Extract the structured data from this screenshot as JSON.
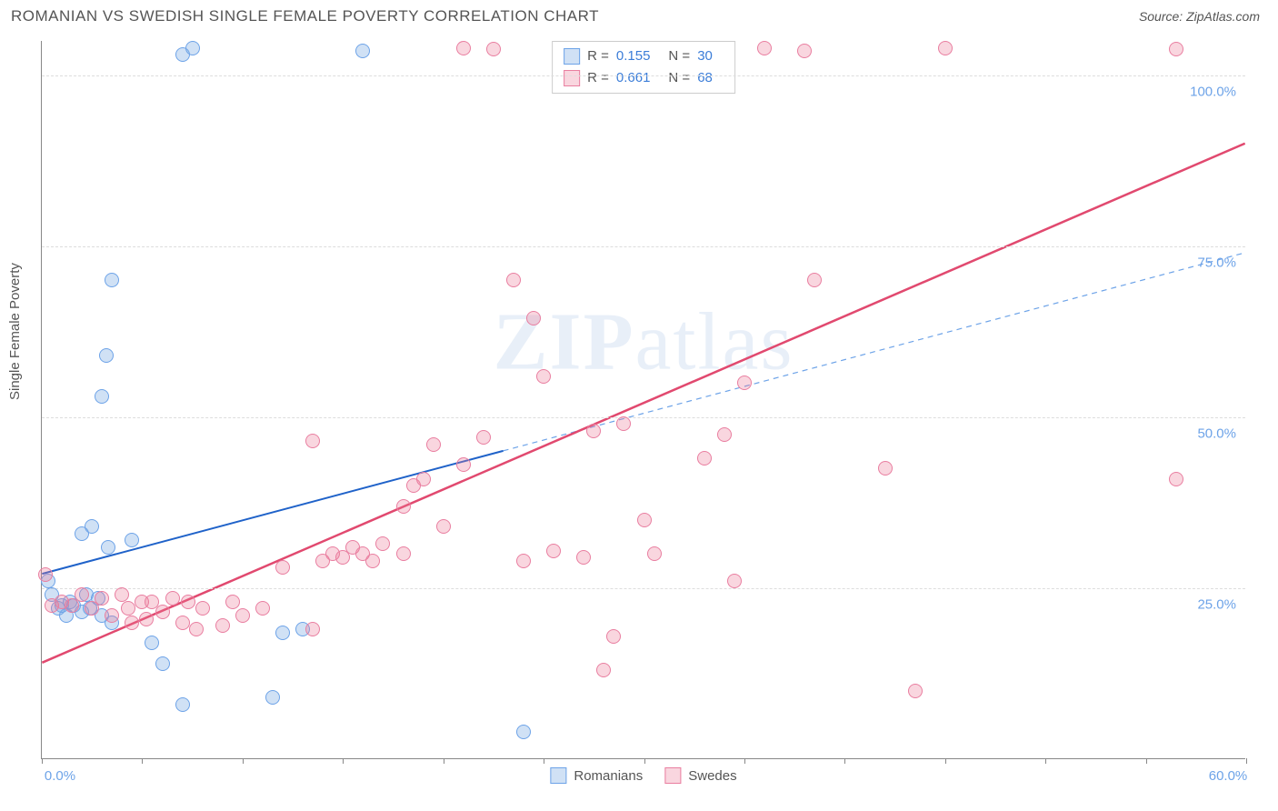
{
  "header": {
    "title": "ROMANIAN VS SWEDISH SINGLE FEMALE POVERTY CORRELATION CHART",
    "source": "Source: ZipAtlas.com"
  },
  "watermark": "ZIPatlas",
  "ylabel": "Single Female Poverty",
  "chart": {
    "type": "scatter",
    "background_color": "#ffffff",
    "grid_color": "#dddddd",
    "axis_color": "#888888",
    "xlim": [
      0,
      60
    ],
    "ylim": [
      0,
      105
    ],
    "xtick_positions": [
      0,
      5,
      10,
      15,
      20,
      25,
      30,
      35,
      40,
      45,
      50,
      55,
      60
    ],
    "xtick_labels": {
      "0": "0.0%",
      "60": "60.0%"
    },
    "ytick_positions": [
      25,
      50,
      75,
      100
    ],
    "ytick_labels": {
      "25": "25.0%",
      "50": "50.0%",
      "75": "75.0%",
      "100": "100.0%"
    },
    "label_color": "#6da3e8",
    "label_fontsize": 15,
    "point_radius": 8,
    "series": [
      {
        "name": "Romanians",
        "color_fill": "rgba(120,170,225,0.35)",
        "color_stroke": "#6da3e8",
        "trend": {
          "x1": 0,
          "y1": 27,
          "x2": 23,
          "y2": 45,
          "solid": true,
          "dash_x2": 60,
          "dash_y2": 74,
          "width": 2,
          "color": "#1f62c9",
          "dash_color": "#6da3e8"
        },
        "points": [
          [
            0.3,
            26
          ],
          [
            0.5,
            24
          ],
          [
            0.8,
            22
          ],
          [
            1.0,
            22.5
          ],
          [
            1.2,
            21
          ],
          [
            1.4,
            23
          ],
          [
            1.6,
            22.5
          ],
          [
            2.0,
            21.5
          ],
          [
            2.2,
            24
          ],
          [
            2.4,
            22
          ],
          [
            2.8,
            23.5
          ],
          [
            3.0,
            21
          ],
          [
            3.5,
            20
          ],
          [
            2.0,
            33
          ],
          [
            2.5,
            34
          ],
          [
            3.3,
            31
          ],
          [
            4.5,
            32
          ],
          [
            3.0,
            53
          ],
          [
            3.2,
            59
          ],
          [
            3.5,
            70
          ],
          [
            7.0,
            103
          ],
          [
            7.5,
            104
          ],
          [
            16.0,
            103.5
          ],
          [
            5.5,
            17
          ],
          [
            6.0,
            14
          ],
          [
            7.0,
            8
          ],
          [
            11.5,
            9
          ],
          [
            12.0,
            18.5
          ],
          [
            13.0,
            19
          ],
          [
            24.0,
            4
          ]
        ]
      },
      {
        "name": "Swedes",
        "color_fill": "rgba(235,120,150,0.30)",
        "color_stroke": "#e97ea0",
        "trend": {
          "x1": 0,
          "y1": 14,
          "x2": 60,
          "y2": 90,
          "solid": true,
          "width": 2.5,
          "color": "#e1496f"
        },
        "points": [
          [
            0.2,
            27
          ],
          [
            0.5,
            22.5
          ],
          [
            1.0,
            23
          ],
          [
            1.5,
            22.5
          ],
          [
            2.0,
            24
          ],
          [
            2.5,
            22
          ],
          [
            3.0,
            23.5
          ],
          [
            3.5,
            21
          ],
          [
            4.0,
            24
          ],
          [
            4.3,
            22
          ],
          [
            4.5,
            20
          ],
          [
            5.0,
            23
          ],
          [
            5.2,
            20.5
          ],
          [
            5.5,
            23
          ],
          [
            6.0,
            21.5
          ],
          [
            6.5,
            23.5
          ],
          [
            7.0,
            20
          ],
          [
            7.3,
            23
          ],
          [
            7.7,
            19
          ],
          [
            8.0,
            22
          ],
          [
            9.0,
            19.5
          ],
          [
            9.5,
            23
          ],
          [
            10.0,
            21
          ],
          [
            11.0,
            22
          ],
          [
            12.0,
            28
          ],
          [
            13.5,
            19
          ],
          [
            14.0,
            29
          ],
          [
            14.5,
            30
          ],
          [
            15.0,
            29.5
          ],
          [
            15.5,
            31
          ],
          [
            16.0,
            30
          ],
          [
            16.5,
            29
          ],
          [
            17.0,
            31.5
          ],
          [
            18.0,
            30
          ],
          [
            18.0,
            37
          ],
          [
            18.5,
            40
          ],
          [
            19.0,
            41
          ],
          [
            19.5,
            46
          ],
          [
            13.5,
            46.5
          ],
          [
            20.0,
            34
          ],
          [
            21.0,
            43
          ],
          [
            22.0,
            47
          ],
          [
            23.5,
            70
          ],
          [
            24.5,
            64.5
          ],
          [
            25.0,
            56
          ],
          [
            24.0,
            29
          ],
          [
            25.5,
            30.5
          ],
          [
            27.0,
            29.5
          ],
          [
            27.5,
            48
          ],
          [
            28.5,
            18
          ],
          [
            29.0,
            49
          ],
          [
            30.0,
            35
          ],
          [
            28.0,
            13
          ],
          [
            30.5,
            30
          ],
          [
            33.0,
            44
          ],
          [
            34.0,
            47.5
          ],
          [
            34.5,
            26
          ],
          [
            35.0,
            55
          ],
          [
            38.5,
            70
          ],
          [
            42.0,
            42.5
          ],
          [
            43.5,
            10
          ],
          [
            56.5,
            41
          ],
          [
            21.0,
            104
          ],
          [
            22.5,
            103.8
          ],
          [
            36.0,
            104
          ],
          [
            38.0,
            103.5
          ],
          [
            45.0,
            104
          ],
          [
            56.5,
            103.8
          ]
        ]
      }
    ]
  },
  "legend_top": [
    {
      "swatch_fill": "rgba(120,170,225,0.35)",
      "swatch_stroke": "#6da3e8",
      "r": "0.155",
      "n": "30"
    },
    {
      "swatch_fill": "rgba(235,120,150,0.30)",
      "swatch_stroke": "#e97ea0",
      "r": "0.661",
      "n": "68"
    }
  ],
  "legend_labels": {
    "r": "R =",
    "n": "N ="
  },
  "legend_bottom": [
    {
      "swatch_fill": "rgba(120,170,225,0.35)",
      "swatch_stroke": "#6da3e8",
      "label": "Romanians"
    },
    {
      "swatch_fill": "rgba(235,120,150,0.30)",
      "swatch_stroke": "#e97ea0",
      "label": "Swedes"
    }
  ]
}
